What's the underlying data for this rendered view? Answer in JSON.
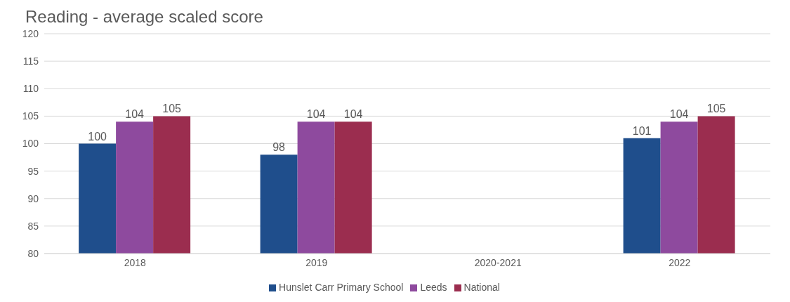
{
  "chart_data": {
    "type": "bar",
    "title": "Reading - average scaled score",
    "categories": [
      "2018",
      "2019",
      "2020-2021",
      "2022"
    ],
    "series": [
      {
        "name": "Hunslet Carr Primary School",
        "color": "#1f4e8c",
        "values": [
          100,
          98,
          null,
          101
        ]
      },
      {
        "name": "Leeds",
        "color": "#8e4a9e",
        "values": [
          104,
          104,
          null,
          104
        ]
      },
      {
        "name": "National",
        "color": "#9b2d4f",
        "values": [
          105,
          104,
          null,
          105
        ]
      }
    ],
    "ylim": [
      80,
      120
    ],
    "yticks": [
      80,
      85,
      90,
      95,
      100,
      105,
      110,
      115,
      120
    ],
    "grid": "y",
    "legend": "bottom",
    "data_labels": true
  }
}
